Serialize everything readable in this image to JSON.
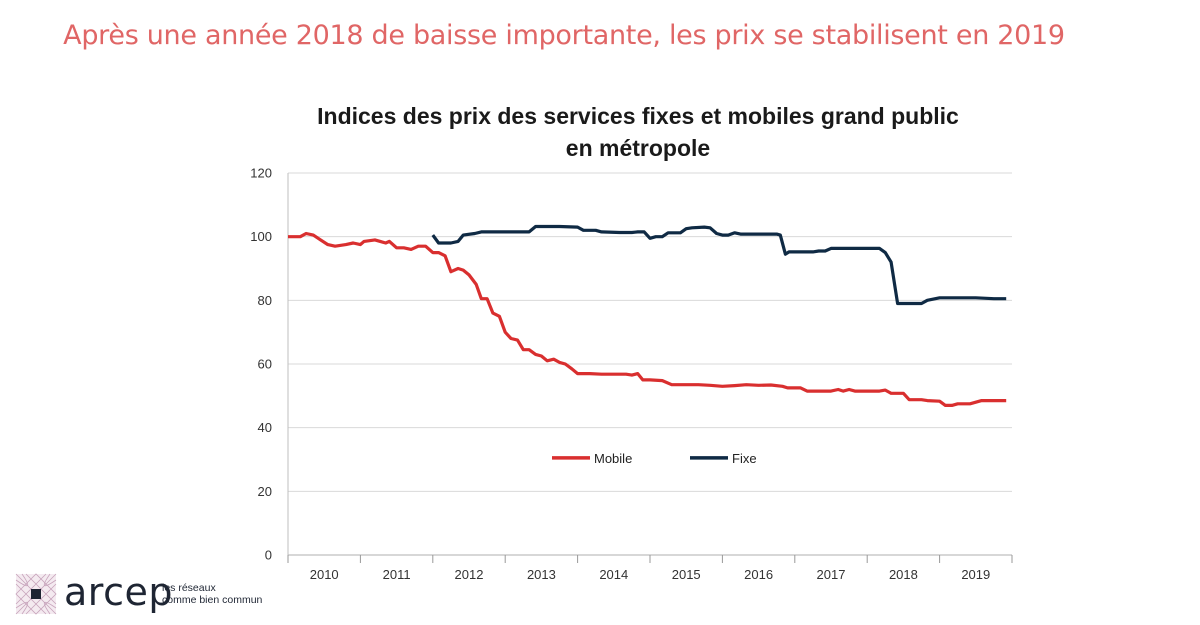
{
  "headline": "Après une année 2018 de baisse importante, les prix se stabilisent en 2019",
  "logo": {
    "name": "arcep",
    "tagline_line1": "les réseaux",
    "tagline_line2": "comme bien commun"
  },
  "chart_data": {
    "type": "line",
    "title_line1": "Indices des prix des services fixes et mobiles grand public",
    "title_line2": "en métropole",
    "ylim": [
      0,
      120
    ],
    "yticks": [
      0,
      20,
      40,
      60,
      80,
      100,
      120
    ],
    "grid": true,
    "x_range": [
      2010,
      2020
    ],
    "xtick_labels": [
      "2010",
      "2011",
      "2012",
      "2013",
      "2014",
      "2015",
      "2016",
      "2017",
      "2018",
      "2019"
    ],
    "legend_position": "center",
    "colors": {
      "Mobile": "#d92f2f",
      "Fixe": "#0f2a44"
    },
    "series": [
      {
        "name": "Mobile",
        "points": [
          [
            2010.0,
            100
          ],
          [
            2010.17,
            100
          ],
          [
            2010.25,
            101
          ],
          [
            2010.35,
            100.5
          ],
          [
            2010.45,
            99
          ],
          [
            2010.55,
            97.5
          ],
          [
            2010.65,
            97
          ],
          [
            2010.8,
            97.5
          ],
          [
            2010.9,
            98
          ],
          [
            2011.0,
            97.5
          ],
          [
            2011.05,
            98.5
          ],
          [
            2011.2,
            99
          ],
          [
            2011.35,
            98
          ],
          [
            2011.4,
            98.5
          ],
          [
            2011.5,
            96.5
          ],
          [
            2011.6,
            96.5
          ],
          [
            2011.7,
            96
          ],
          [
            2011.8,
            97
          ],
          [
            2011.9,
            97
          ],
          [
            2012.0,
            95
          ],
          [
            2012.08,
            95
          ],
          [
            2012.17,
            94
          ],
          [
            2012.25,
            89
          ],
          [
            2012.35,
            90
          ],
          [
            2012.42,
            89.5
          ],
          [
            2012.5,
            88
          ],
          [
            2012.6,
            85
          ],
          [
            2012.67,
            80.5
          ],
          [
            2012.75,
            80.5
          ],
          [
            2012.83,
            76
          ],
          [
            2012.92,
            75
          ],
          [
            2013.0,
            70
          ],
          [
            2013.08,
            68
          ],
          [
            2013.17,
            67.5
          ],
          [
            2013.25,
            64.5
          ],
          [
            2013.33,
            64.5
          ],
          [
            2013.42,
            63
          ],
          [
            2013.5,
            62.5
          ],
          [
            2013.58,
            61
          ],
          [
            2013.67,
            61.5
          ],
          [
            2013.75,
            60.5
          ],
          [
            2013.83,
            60
          ],
          [
            2013.92,
            58.5
          ],
          [
            2014.0,
            57
          ],
          [
            2014.17,
            57
          ],
          [
            2014.33,
            56.8
          ],
          [
            2014.5,
            56.8
          ],
          [
            2014.67,
            56.8
          ],
          [
            2014.75,
            56.5
          ],
          [
            2014.83,
            57
          ],
          [
            2014.9,
            55
          ],
          [
            2015.0,
            55
          ],
          [
            2015.17,
            54.8
          ],
          [
            2015.3,
            53.5
          ],
          [
            2015.5,
            53.5
          ],
          [
            2015.67,
            53.5
          ],
          [
            2015.83,
            53.3
          ],
          [
            2016.0,
            53
          ],
          [
            2016.17,
            53.2
          ],
          [
            2016.33,
            53.5
          ],
          [
            2016.5,
            53.3
          ],
          [
            2016.67,
            53.4
          ],
          [
            2016.83,
            53
          ],
          [
            2016.9,
            52.5
          ],
          [
            2017.0,
            52.5
          ],
          [
            2017.08,
            52.5
          ],
          [
            2017.17,
            51.5
          ],
          [
            2017.33,
            51.5
          ],
          [
            2017.5,
            51.5
          ],
          [
            2017.6,
            52
          ],
          [
            2017.67,
            51.5
          ],
          [
            2017.75,
            52
          ],
          [
            2017.83,
            51.5
          ],
          [
            2018.0,
            51.5
          ],
          [
            2018.17,
            51.5
          ],
          [
            2018.25,
            51.8
          ],
          [
            2018.33,
            50.8
          ],
          [
            2018.5,
            50.8
          ],
          [
            2018.58,
            48.8
          ],
          [
            2018.75,
            48.8
          ],
          [
            2018.83,
            48.5
          ],
          [
            2019.0,
            48.3
          ],
          [
            2019.08,
            47
          ],
          [
            2019.17,
            47
          ],
          [
            2019.25,
            47.5
          ],
          [
            2019.42,
            47.5
          ],
          [
            2019.58,
            48.5
          ],
          [
            2019.75,
            48.5
          ],
          [
            2019.92,
            48.5
          ]
        ]
      },
      {
        "name": "Fixe",
        "points": [
          [
            2012.0,
            100.5
          ],
          [
            2012.08,
            98
          ],
          [
            2012.25,
            98
          ],
          [
            2012.35,
            98.5
          ],
          [
            2012.42,
            100.5
          ],
          [
            2012.58,
            101
          ],
          [
            2012.67,
            101.5
          ],
          [
            2013.0,
            101.5
          ],
          [
            2013.33,
            101.5
          ],
          [
            2013.42,
            103.2
          ],
          [
            2013.58,
            103.2
          ],
          [
            2013.75,
            103.2
          ],
          [
            2014.0,
            103
          ],
          [
            2014.08,
            102
          ],
          [
            2014.25,
            102
          ],
          [
            2014.33,
            101.5
          ],
          [
            2014.58,
            101.3
          ],
          [
            2014.75,
            101.3
          ],
          [
            2014.83,
            101.5
          ],
          [
            2014.92,
            101.5
          ],
          [
            2015.0,
            99.5
          ],
          [
            2015.08,
            100
          ],
          [
            2015.17,
            100
          ],
          [
            2015.25,
            101.2
          ],
          [
            2015.42,
            101.2
          ],
          [
            2015.5,
            102.5
          ],
          [
            2015.58,
            102.8
          ],
          [
            2015.75,
            103
          ],
          [
            2015.83,
            102.8
          ],
          [
            2015.92,
            101
          ],
          [
            2016.0,
            100.5
          ],
          [
            2016.08,
            100.5
          ],
          [
            2016.17,
            101.2
          ],
          [
            2016.25,
            100.8
          ],
          [
            2016.42,
            100.8
          ],
          [
            2016.58,
            100.8
          ],
          [
            2016.75,
            100.8
          ],
          [
            2016.8,
            100.5
          ],
          [
            2016.87,
            94.5
          ],
          [
            2016.92,
            95.2
          ],
          [
            2017.08,
            95.2
          ],
          [
            2017.25,
            95.2
          ],
          [
            2017.33,
            95.5
          ],
          [
            2017.42,
            95.5
          ],
          [
            2017.5,
            96.3
          ],
          [
            2017.67,
            96.3
          ],
          [
            2017.83,
            96.3
          ],
          [
            2018.0,
            96.3
          ],
          [
            2018.17,
            96.3
          ],
          [
            2018.25,
            95
          ],
          [
            2018.33,
            92
          ],
          [
            2018.42,
            79
          ],
          [
            2018.5,
            79
          ],
          [
            2018.75,
            79
          ],
          [
            2018.83,
            80
          ],
          [
            2019.0,
            80.8
          ],
          [
            2019.25,
            80.8
          ],
          [
            2019.5,
            80.8
          ],
          [
            2019.75,
            80.5
          ],
          [
            2019.92,
            80.5
          ]
        ]
      }
    ]
  }
}
